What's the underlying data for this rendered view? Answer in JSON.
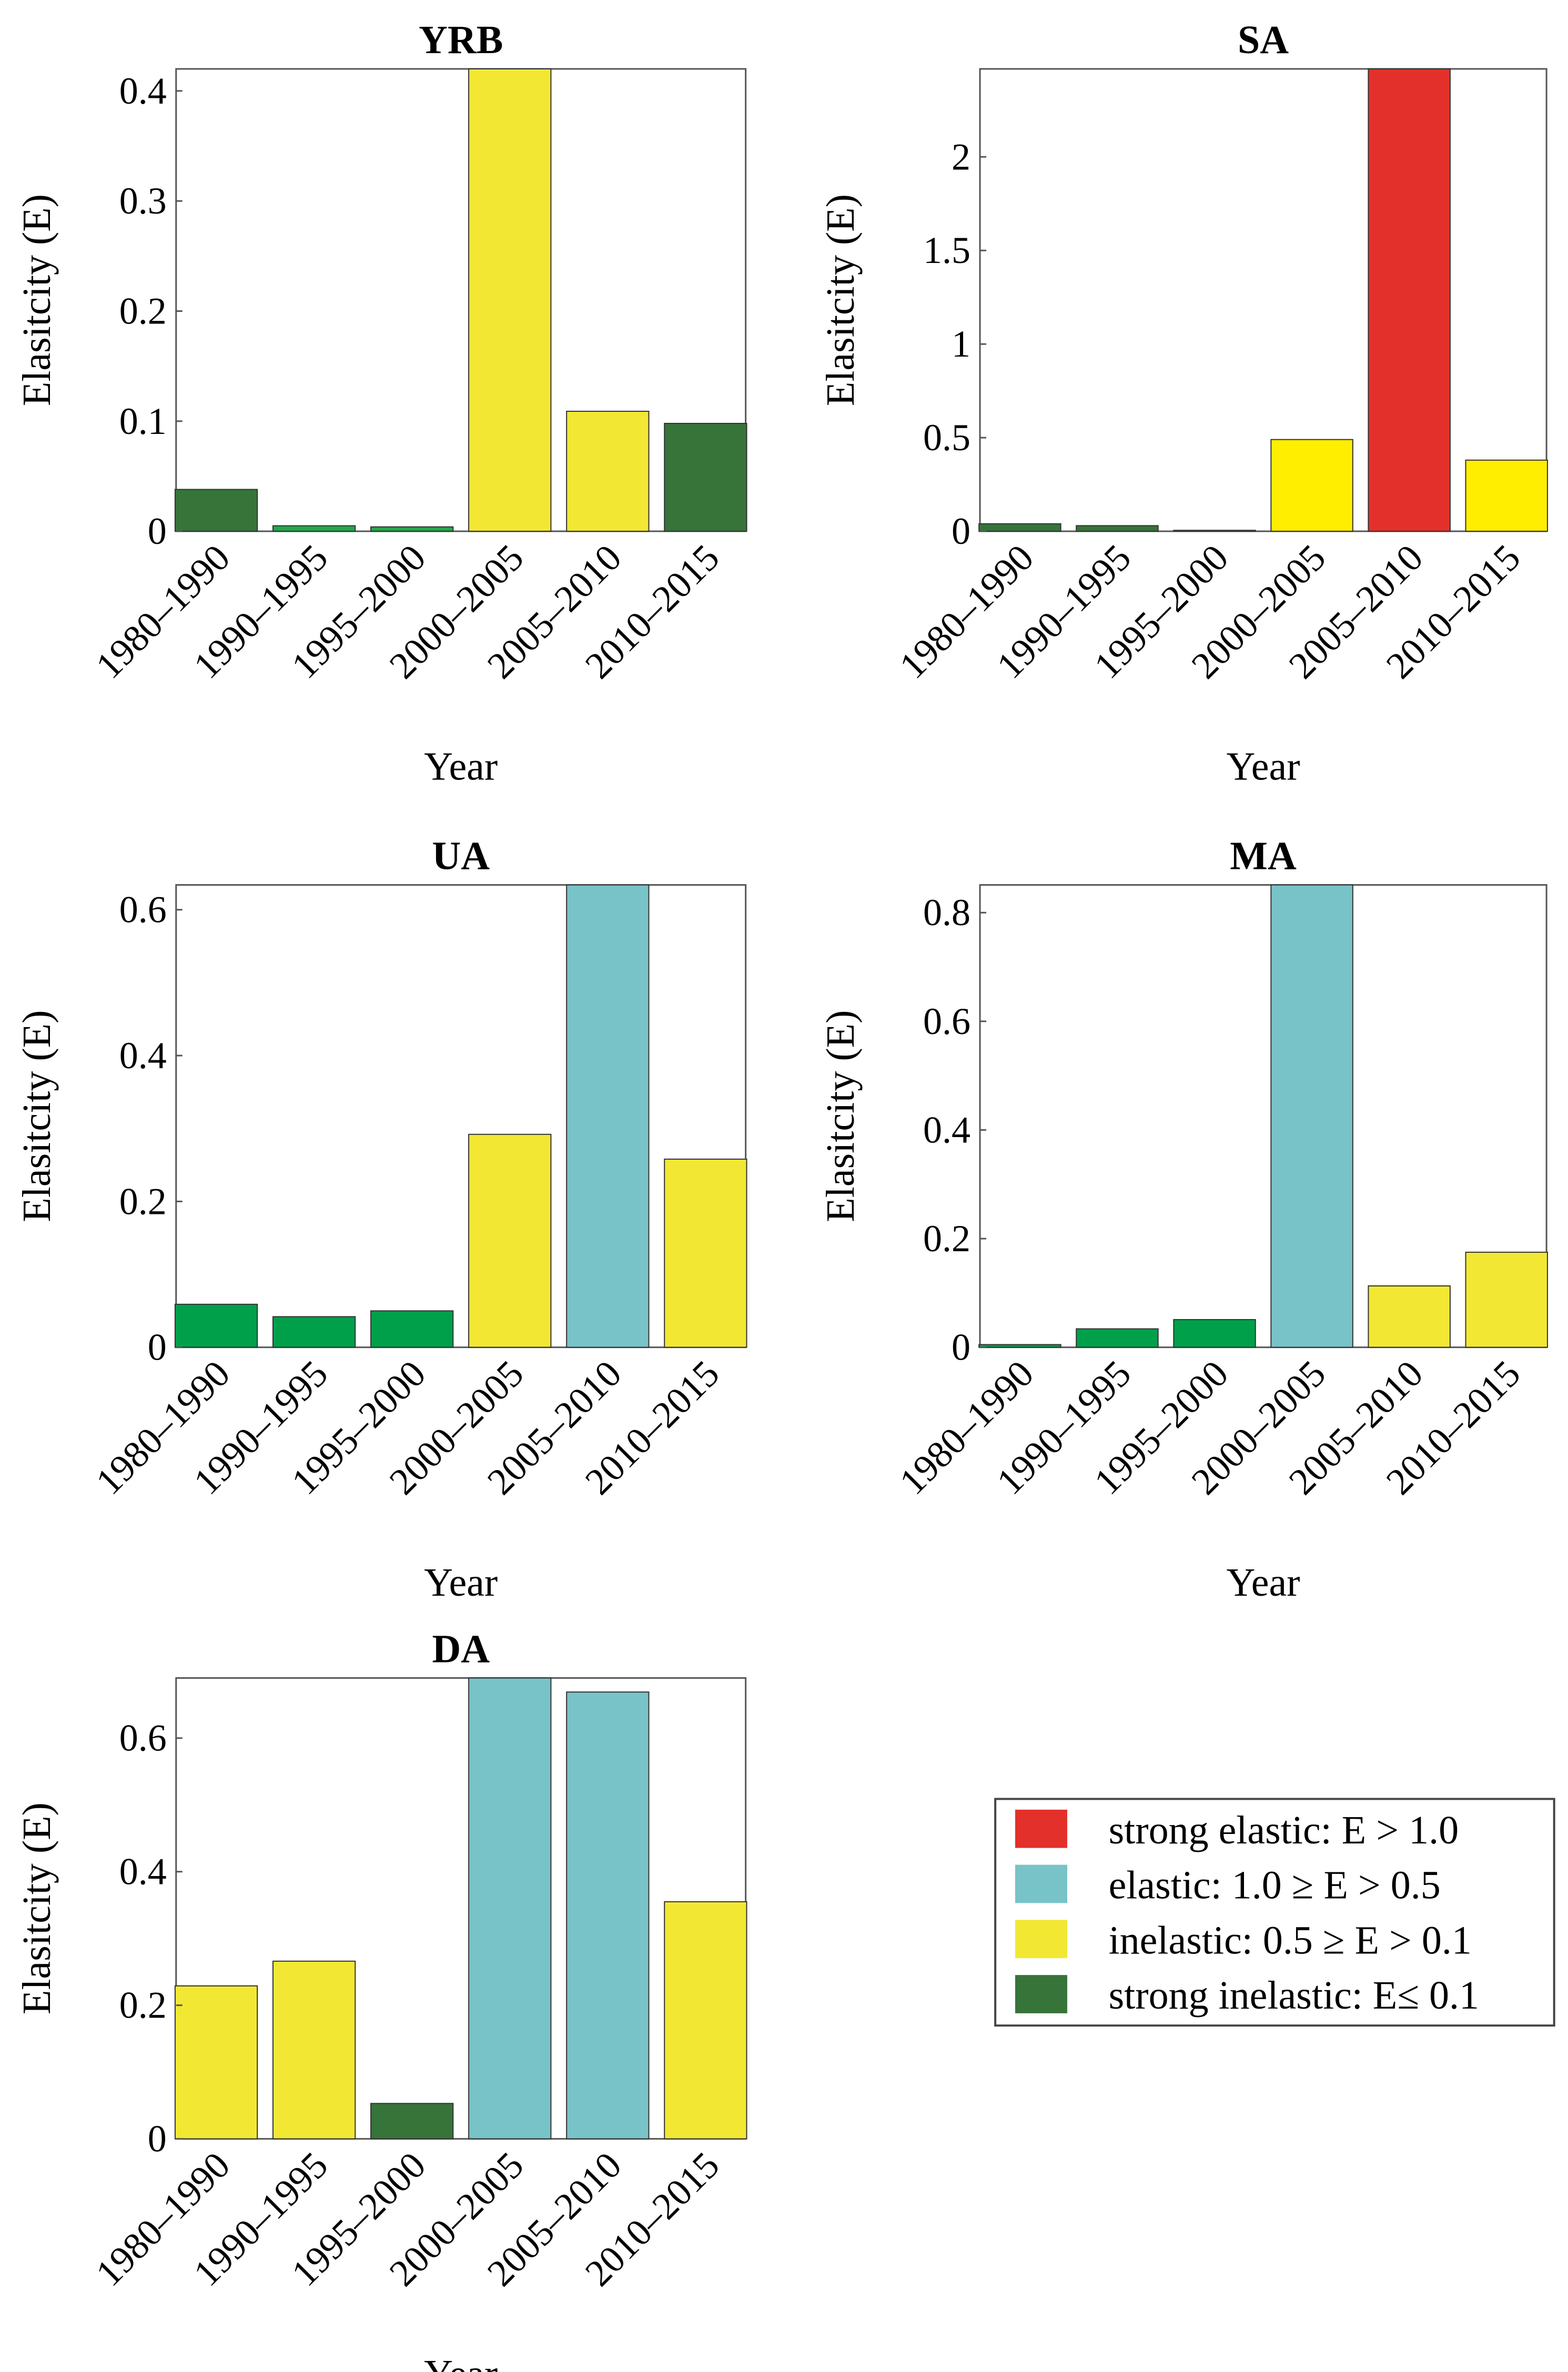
{
  "chart_data": [
    {
      "type": "bar",
      "title": "YRB",
      "xlabel": "Year",
      "ylabel": "Elasitcity (E)",
      "categories": [
        "1980–1990",
        "1990–1995",
        "1995–2000",
        "2000–2005",
        "2005–2010",
        "2010–2015"
      ],
      "values": [
        0.038,
        0.005,
        0.004,
        0.42,
        0.109,
        0.098
      ],
      "colors": [
        "#36743a",
        "#22a84a",
        "#22a84a",
        "#f2e833",
        "#f2e833",
        "#36743a"
      ],
      "ylim": [
        0,
        0.42
      ],
      "yticks": [
        "0",
        "0.1",
        "0.2",
        "0.3",
        "0.4"
      ],
      "ytick_values": [
        0,
        0.1,
        0.2,
        0.3,
        0.4
      ]
    },
    {
      "type": "bar",
      "title": "SA",
      "xlabel": "Year",
      "ylabel": "Elasitcity (E)",
      "categories": [
        "1980–1990",
        "1990–1995",
        "1995–2000",
        "2000–2005",
        "2005–2010",
        "2010–2015"
      ],
      "values": [
        0.04,
        0.03,
        0.005,
        0.49,
        2.47,
        0.38
      ],
      "colors": [
        "#36743a",
        "#36743a",
        "#36743a",
        "#ffee00",
        "#e3302b",
        "#ffee00"
      ],
      "ylim": [
        0,
        2.47
      ],
      "yticks": [
        "0",
        "0.5",
        "1",
        "1.5",
        "2"
      ],
      "ytick_values": [
        0,
        0.5,
        1,
        1.5,
        2
      ]
    },
    {
      "type": "bar",
      "title": "UA",
      "xlabel": "Year",
      "ylabel": "Elasitcity (E)",
      "categories": [
        "1980–1990",
        "1990–1995",
        "1995–2000",
        "2000–2005",
        "2005–2010",
        "2010–2015"
      ],
      "values": [
        0.059,
        0.042,
        0.05,
        0.292,
        0.634,
        0.258
      ],
      "colors": [
        "#00a04a",
        "#00a04a",
        "#00a04a",
        "#f2e833",
        "#78c3c8",
        "#f2e833"
      ],
      "ylim": [
        0,
        0.634
      ],
      "yticks": [
        "0",
        "0.2",
        "0.4",
        "0.6"
      ],
      "ytick_values": [
        0,
        0.2,
        0.4,
        0.6
      ]
    },
    {
      "type": "bar",
      "title": "MA",
      "xlabel": "Year",
      "ylabel": "Elasitcity (E)",
      "categories": [
        "1980–1990",
        "1990–1995",
        "1995–2000",
        "2000–2005",
        "2005–2010",
        "2010–2015"
      ],
      "values": [
        0.005,
        0.034,
        0.051,
        0.851,
        0.113,
        0.175
      ],
      "colors": [
        "#00a04a",
        "#00a04a",
        "#00a04a",
        "#78c3c8",
        "#f2e833",
        "#f2e833"
      ],
      "ylim": [
        0,
        0.851
      ],
      "yticks": [
        "0",
        "0.2",
        "0.4",
        "0.6",
        "0.8"
      ],
      "ytick_values": [
        0,
        0.2,
        0.4,
        0.6,
        0.8
      ]
    },
    {
      "type": "bar",
      "title": "DA",
      "xlabel": "Year",
      "ylabel": "Elasitcity (E)",
      "categories": [
        "1980–1990",
        "1990–1995",
        "1995–2000",
        "2000–2005",
        "2005–2010",
        "2010–2015"
      ],
      "values": [
        0.229,
        0.266,
        0.053,
        0.69,
        0.669,
        0.355
      ],
      "colors": [
        "#f2e833",
        "#f2e833",
        "#36743a",
        "#78c3c8",
        "#78c3c8",
        "#f2e833"
      ],
      "ylim": [
        0,
        0.69
      ],
      "yticks": [
        "0",
        "0.2",
        "0.4",
        "0.6"
      ],
      "ytick_values": [
        0,
        0.2,
        0.4,
        0.6
      ]
    }
  ],
  "legend": {
    "placement": "bottom-right",
    "items": [
      {
        "label": "strong elastic: E > 1.0",
        "color": "#e3302b"
      },
      {
        "label": "elastic: 1.0 ≥ E > 0.5",
        "color": "#78c3c8"
      },
      {
        "label": "inelastic: 0.5 ≥ E > 0.1",
        "color": "#f2e833"
      },
      {
        "label": "strong inelastic: E≤ 0.1",
        "color": "#36743a"
      }
    ]
  }
}
